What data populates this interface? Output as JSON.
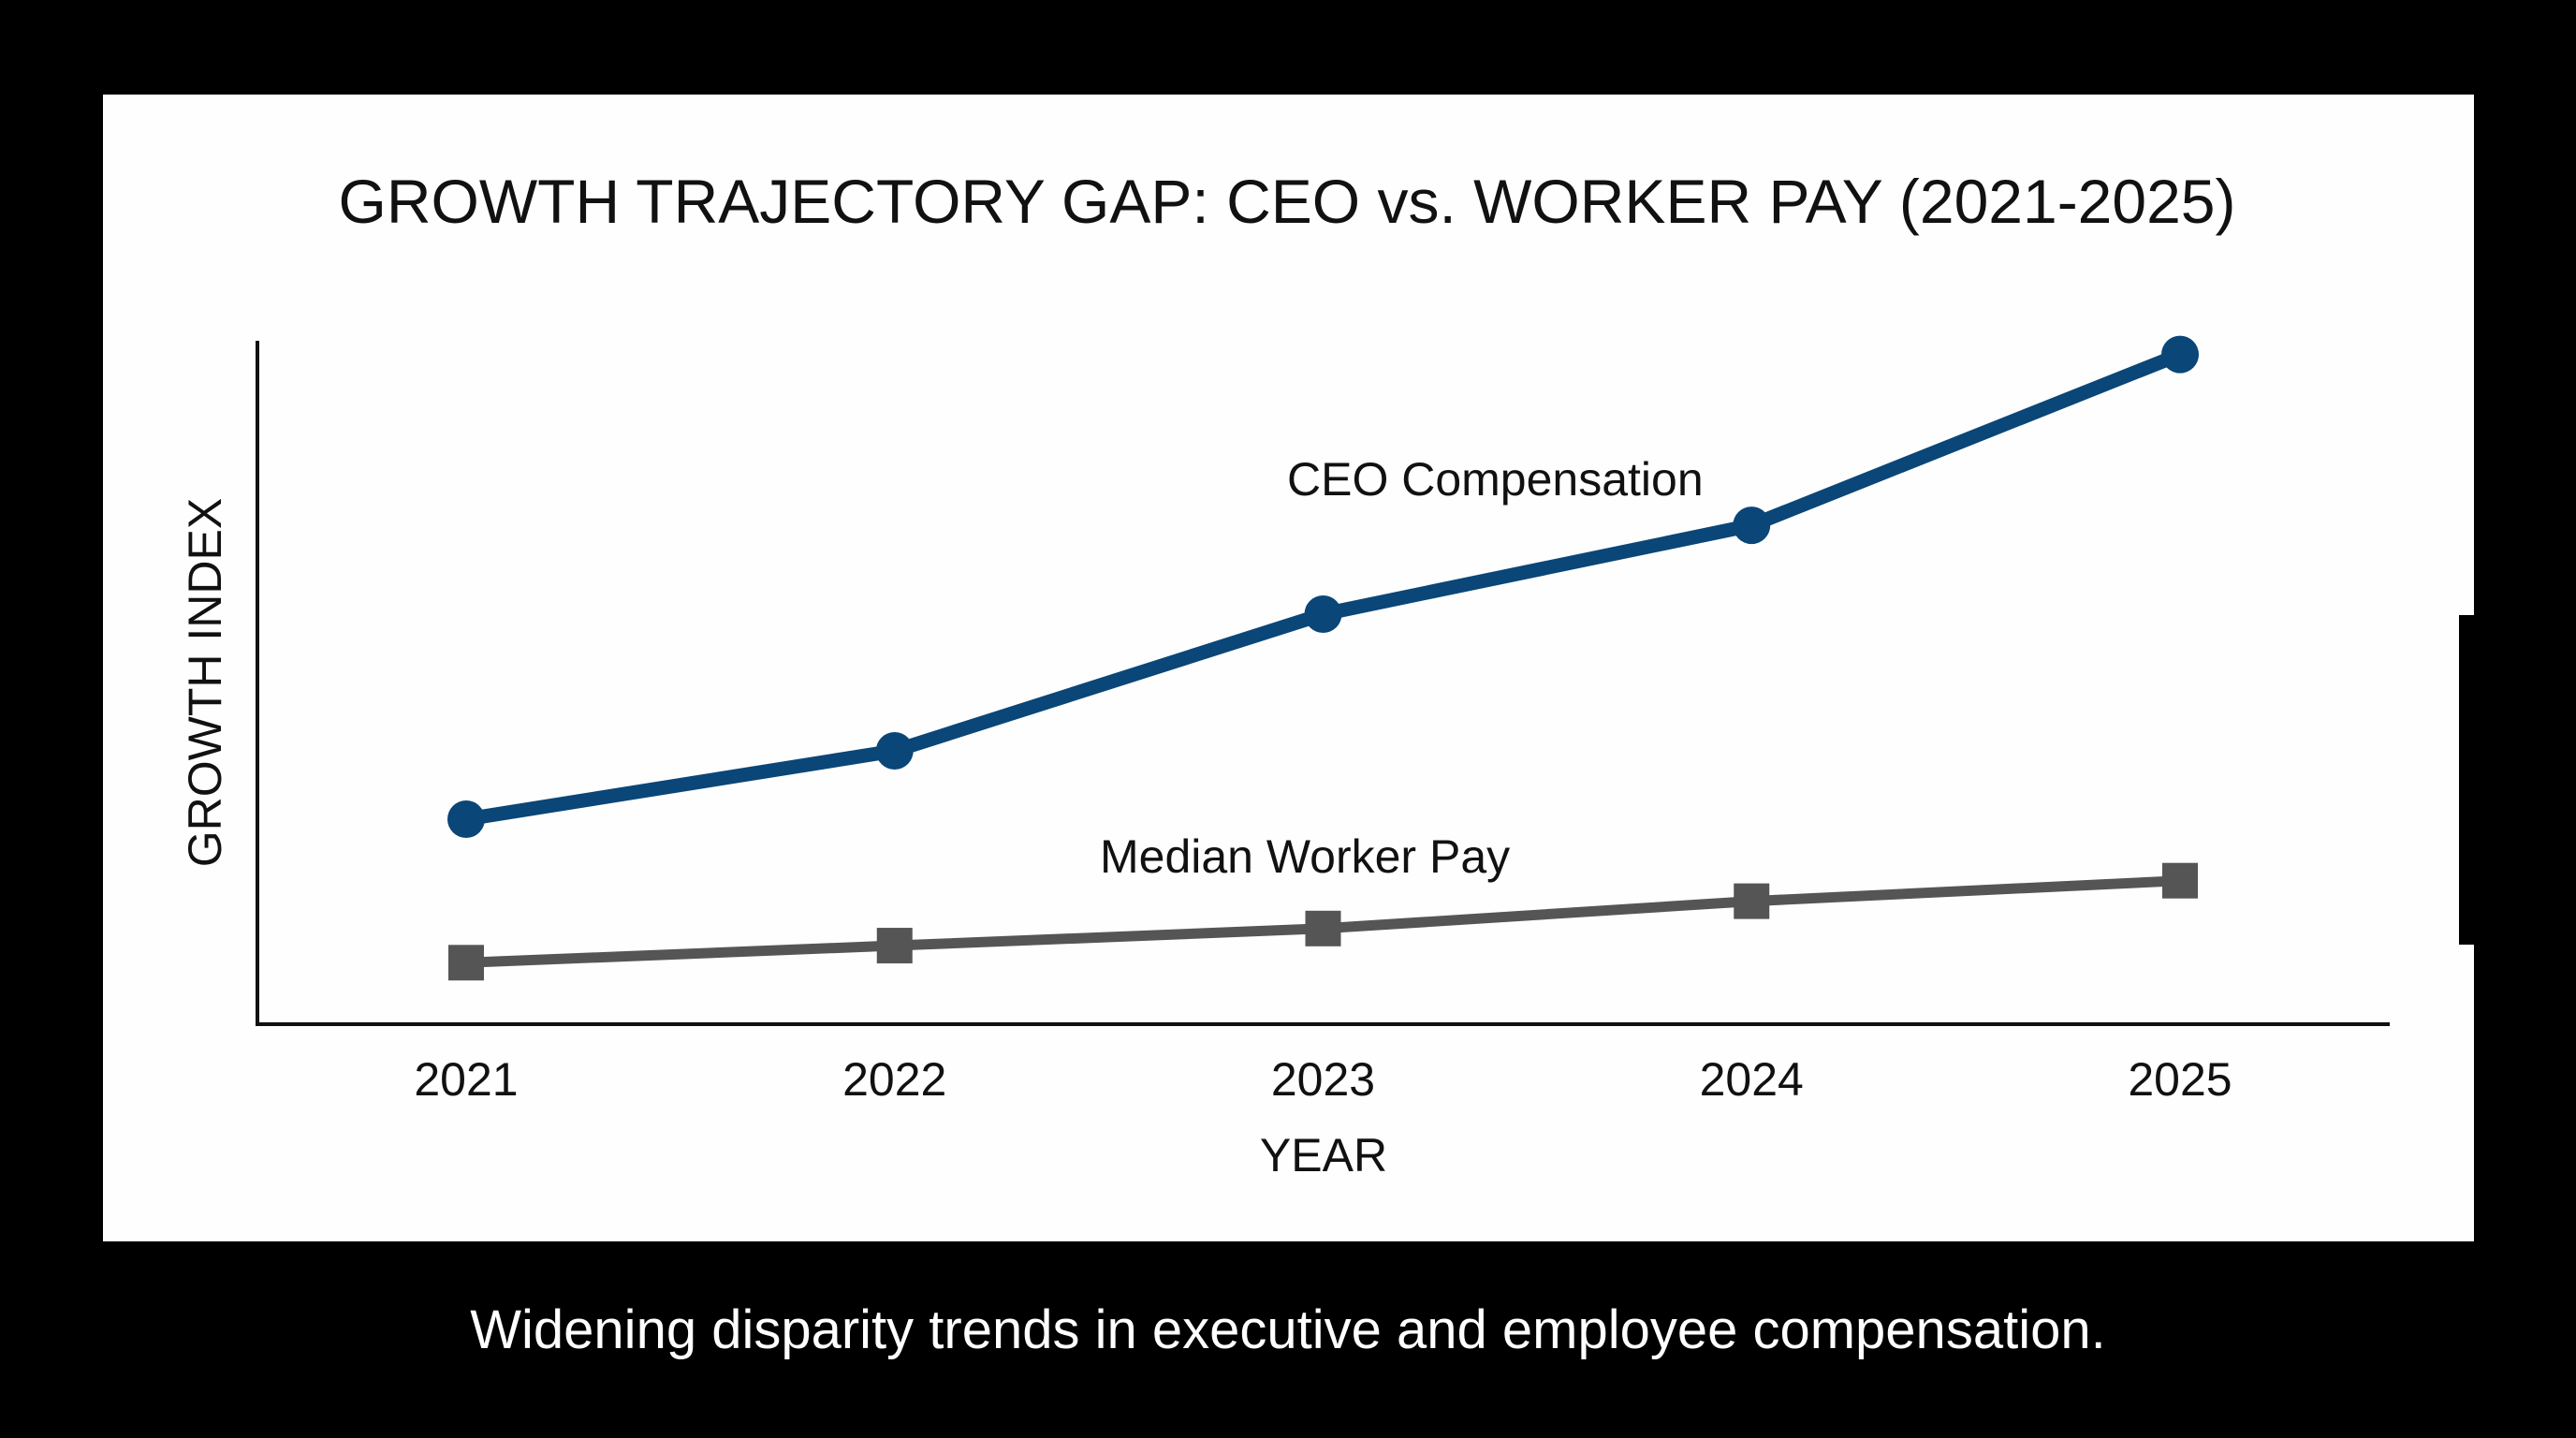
{
  "caption": "Widening disparity trends in executive and employee compensation.",
  "colors": {
    "background": "#000000",
    "card": "#fefefe",
    "ceo_series": "#0a4677",
    "worker_series": "#555555",
    "axis": "#111111"
  },
  "chart_data": {
    "type": "line",
    "title": "GROWTH TRAJECTORY GAP: CEO vs. WORKER PAY (2021-2025)",
    "xlabel": "YEAR",
    "ylabel": "GROWTH INDEX",
    "categories": [
      "2021",
      "2022",
      "2023",
      "2024",
      "2025"
    ],
    "ylim": [
      0,
      100
    ],
    "grid": false,
    "legend": "none",
    "series": [
      {
        "name": "CEO Compensation",
        "marker": "circle",
        "values": [
          30,
          40,
          60,
          73,
          98
        ]
      },
      {
        "name": "Median Worker Pay",
        "marker": "square",
        "values": [
          9,
          11.5,
          14,
          18,
          21
        ]
      }
    ]
  }
}
